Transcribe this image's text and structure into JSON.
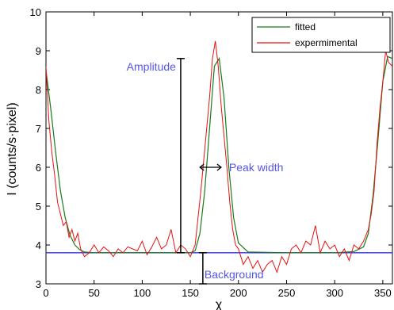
{
  "chart_data": {
    "type": "line",
    "xlabel": "χ",
    "ylabel": "I (counts/s·pixel)",
    "xlim": [
      0,
      360
    ],
    "ylim": [
      3,
      10
    ],
    "xticks": [
      0,
      50,
      100,
      150,
      200,
      250,
      300,
      350
    ],
    "yticks": [
      3,
      4,
      5,
      6,
      7,
      8,
      9,
      10
    ],
    "grid": false,
    "legend_position": "top-right",
    "colors": {
      "fitted": "#1a7a1a",
      "expermimental": "#e8110f",
      "annotation": "#5555ee",
      "background_line": "#3333dd"
    },
    "series": [
      {
        "name": "fitted",
        "x": [
          0,
          5,
          10,
          15,
          20,
          25,
          30,
          35,
          40,
          50,
          100,
          150,
          155,
          160,
          165,
          170,
          175,
          180,
          185,
          190,
          195,
          200,
          210,
          250,
          300,
          320,
          330,
          335,
          340,
          345,
          350,
          355,
          360
        ],
        "y": [
          8.5,
          7.5,
          6.4,
          5.4,
          4.7,
          4.25,
          4.0,
          3.88,
          3.82,
          3.8,
          3.8,
          3.8,
          3.85,
          4.3,
          5.4,
          7.0,
          8.6,
          8.8,
          7.8,
          6.0,
          4.7,
          4.05,
          3.82,
          3.8,
          3.8,
          3.83,
          3.95,
          4.3,
          5.3,
          6.7,
          8.2,
          8.85,
          8.8
        ]
      },
      {
        "name": "expermimental",
        "x": [
          0,
          3,
          6,
          9,
          12,
          15,
          18,
          21,
          24,
          27,
          30,
          33,
          36,
          40,
          45,
          50,
          55,
          60,
          65,
          70,
          75,
          80,
          85,
          90,
          95,
          100,
          105,
          110,
          115,
          120,
          125,
          130,
          135,
          140,
          145,
          150,
          155,
          158,
          161,
          164,
          167,
          170,
          173,
          176,
          179,
          182,
          185,
          188,
          191,
          194,
          197,
          200,
          205,
          210,
          215,
          220,
          225,
          230,
          235,
          240,
          245,
          250,
          255,
          260,
          265,
          270,
          275,
          280,
          285,
          290,
          295,
          300,
          305,
          310,
          315,
          320,
          325,
          330,
          335,
          338,
          341,
          344,
          347,
          350,
          353,
          356,
          360
        ],
        "y": [
          8.6,
          7.2,
          6.4,
          5.8,
          5.1,
          4.8,
          4.5,
          4.6,
          4.2,
          4.4,
          4.1,
          4.3,
          3.9,
          3.7,
          3.8,
          4.0,
          3.8,
          3.95,
          3.85,
          3.7,
          3.9,
          3.8,
          3.95,
          3.9,
          3.85,
          4.1,
          3.75,
          3.95,
          4.2,
          3.9,
          4.0,
          4.4,
          3.8,
          4.0,
          3.9,
          3.7,
          4.0,
          4.7,
          5.4,
          6.2,
          7.0,
          7.8,
          8.8,
          9.25,
          8.6,
          7.6,
          6.8,
          6.0,
          5.1,
          4.4,
          4.0,
          3.9,
          3.5,
          3.7,
          3.4,
          3.6,
          3.3,
          3.5,
          3.6,
          3.3,
          3.7,
          3.5,
          3.9,
          4.0,
          3.8,
          4.1,
          4.0,
          4.5,
          3.8,
          4.1,
          3.9,
          4.0,
          3.7,
          3.9,
          3.6,
          4.0,
          3.9,
          4.1,
          4.4,
          4.8,
          5.4,
          6.6,
          7.5,
          8.2,
          9.0,
          8.7,
          8.6
        ]
      }
    ],
    "annotations": [
      {
        "label": "Amplitude",
        "type": "vertical-bar",
        "x": 140,
        "y_from": 3.8,
        "y_to": 8.8
      },
      {
        "label": "Peak width",
        "type": "horizontal-arrow",
        "y": 6.0,
        "x_from": 160,
        "x_to": 182
      },
      {
        "label": "Background",
        "type": "vertical-bar",
        "x": 163,
        "y_from": 3.0,
        "y_to": 3.8
      }
    ],
    "background_level": 3.8
  }
}
